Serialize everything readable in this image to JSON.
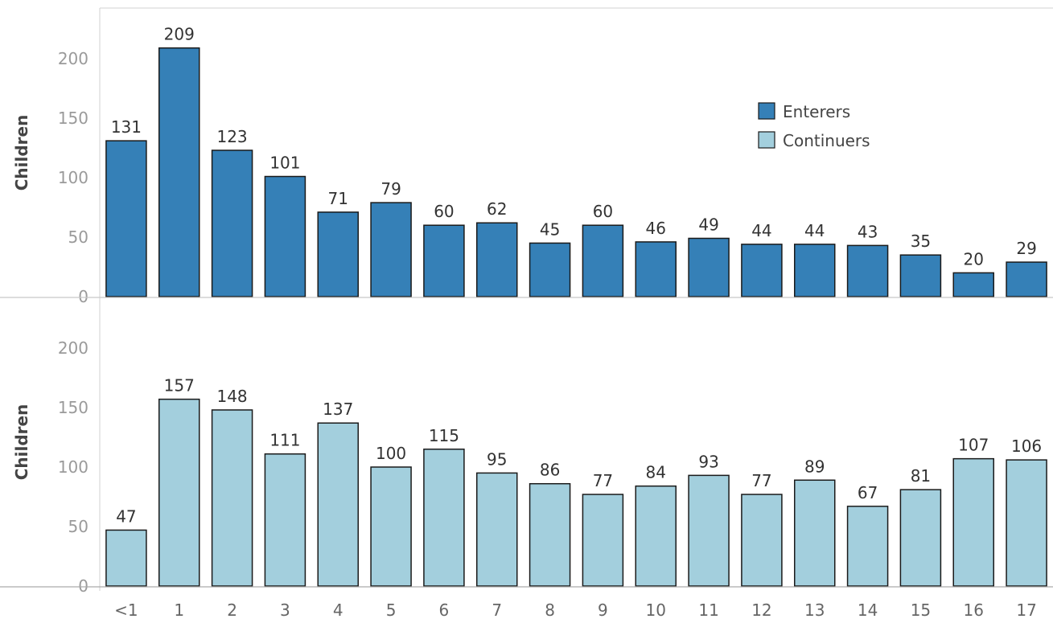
{
  "chart_data": {
    "type": "bar",
    "categories": [
      "<1",
      "1",
      "2",
      "3",
      "4",
      "5",
      "6",
      "7",
      "8",
      "9",
      "10",
      "11",
      "12",
      "13",
      "14",
      "15",
      "16",
      "17"
    ],
    "ylabel": "Children",
    "legend_position": "top-right",
    "grid": false,
    "panels": [
      {
        "series_name": "Enterers",
        "color": "#3580b7",
        "ylim": [
          0,
          240
        ],
        "yticks": [
          0,
          50,
          100,
          150,
          200
        ],
        "values": [
          131,
          209,
          123,
          101,
          71,
          79,
          60,
          62,
          45,
          60,
          46,
          49,
          44,
          44,
          43,
          35,
          20,
          29
        ]
      },
      {
        "series_name": "Continuers",
        "color": "#a3cfdd",
        "ylim": [
          0,
          240
        ],
        "yticks": [
          0,
          50,
          100,
          150,
          200
        ],
        "values": [
          47,
          157,
          148,
          111,
          137,
          100,
          115,
          95,
          86,
          77,
          84,
          93,
          77,
          89,
          67,
          81,
          107,
          106
        ]
      }
    ],
    "legend": [
      {
        "label": "Enterers",
        "color": "#3580b7"
      },
      {
        "label": "Continuers",
        "color": "#a3cfdd"
      }
    ]
  }
}
